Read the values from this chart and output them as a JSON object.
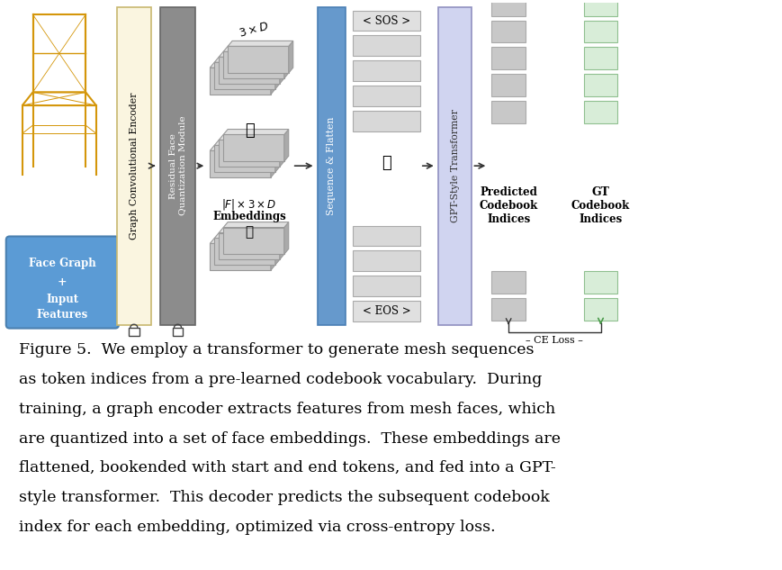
{
  "bg_color": "#ffffff",
  "fig_width": 8.7,
  "fig_height": 6.33,
  "caption_lines": [
    "Figure 5.  We employ a transformer to generate mesh sequences",
    "as token indices from a pre-learned codebook vocabulary.  During",
    "training, a graph encoder extracts features from mesh faces, which",
    "are quantized into a set of face embeddings.  These embeddings are",
    "flattened, bookended with start and end tokens, and fed into a GPT-",
    "style transformer.  This decoder predicts the subsequent codebook",
    "index for each embedding, optimized via cross-entropy loss."
  ],
  "colors": {
    "input_box": "#5b9bd5",
    "graph_enc": "#faf5e0",
    "residual": "#8c8c8c",
    "sequence_box": "#6699cc",
    "gpt_box": "#d0d4f0",
    "predicted_sq": "#c8c8c8",
    "gt_sq": "#d8edd8",
    "sos_eos_box": "#e0e0e0",
    "token_box": "#d8d8d8",
    "emb_face": "#c8c8c8",
    "emb_top": "#e0e0e0",
    "emb_right": "#aaaaaa",
    "arrow": "#333333",
    "ce_arrow_gt": "#4a9a4a",
    "white": "#ffffff",
    "black": "#000000",
    "lock": "#555555"
  }
}
